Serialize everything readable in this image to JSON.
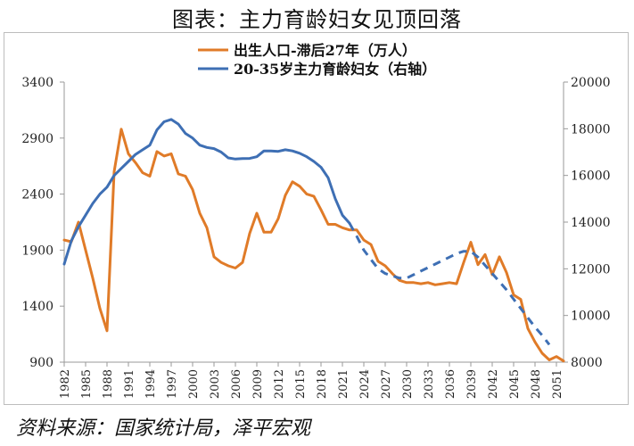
{
  "title": "图表：主力育龄妇女见顶回落",
  "source": "资料来源：国家统计局，泽平宏观",
  "chart_data": {
    "type": "line",
    "legend_position": "top-center",
    "grid": false,
    "x_ticks": [
      "1982",
      "1985",
      "1988",
      "1991",
      "1994",
      "1997",
      "2000",
      "2003",
      "2006",
      "2009",
      "2012",
      "2015",
      "2018",
      "2021",
      "2024",
      "2027",
      "2030",
      "2033",
      "2036",
      "2039",
      "2042",
      "2045",
      "2048",
      "2051"
    ],
    "x_range": [
      1982,
      2052
    ],
    "y_left": {
      "range": [
        900,
        3400
      ],
      "ticks": [
        900,
        1400,
        1900,
        2400,
        2900,
        3400
      ]
    },
    "y_right": {
      "range": [
        8000,
        20000
      ],
      "ticks": [
        8000,
        10000,
        12000,
        14000,
        16000,
        18000,
        20000
      ]
    },
    "series": [
      {
        "name": "出生人口-滞后27年（万人）",
        "axis": "left",
        "color": "#E07B28",
        "style": "solid",
        "points": [
          [
            1982,
            1990
          ],
          [
            1983,
            1975
          ],
          [
            1984,
            2150
          ],
          [
            1985,
            1900
          ],
          [
            1986,
            1650
          ],
          [
            1987,
            1380
          ],
          [
            1988,
            1180
          ],
          [
            1989,
            2600
          ],
          [
            1990,
            2980
          ],
          [
            1991,
            2760
          ],
          [
            1992,
            2680
          ],
          [
            1993,
            2590
          ],
          [
            1994,
            2560
          ],
          [
            1995,
            2780
          ],
          [
            1996,
            2740
          ],
          [
            1997,
            2760
          ],
          [
            1998,
            2580
          ],
          [
            1999,
            2560
          ],
          [
            2000,
            2440
          ],
          [
            2001,
            2230
          ],
          [
            2002,
            2100
          ],
          [
            2003,
            1840
          ],
          [
            2004,
            1790
          ],
          [
            2005,
            1760
          ],
          [
            2006,
            1740
          ],
          [
            2007,
            1790
          ],
          [
            2008,
            2050
          ],
          [
            2009,
            2230
          ],
          [
            2010,
            2060
          ],
          [
            2011,
            2060
          ],
          [
            2012,
            2180
          ],
          [
            2013,
            2390
          ],
          [
            2014,
            2510
          ],
          [
            2015,
            2470
          ],
          [
            2016,
            2400
          ],
          [
            2017,
            2380
          ],
          [
            2018,
            2260
          ],
          [
            2019,
            2130
          ],
          [
            2020,
            2130
          ],
          [
            2021,
            2100
          ],
          [
            2022,
            2080
          ],
          [
            2023,
            2080
          ],
          [
            2024,
            1990
          ],
          [
            2025,
            1950
          ],
          [
            2026,
            1800
          ],
          [
            2027,
            1760
          ],
          [
            2028,
            1690
          ],
          [
            2029,
            1630
          ],
          [
            2030,
            1610
          ],
          [
            2031,
            1610
          ],
          [
            2032,
            1600
          ],
          [
            2033,
            1610
          ],
          [
            2034,
            1590
          ],
          [
            2035,
            1600
          ],
          [
            2036,
            1610
          ],
          [
            2037,
            1600
          ],
          [
            2038,
            1790
          ],
          [
            2039,
            1970
          ],
          [
            2040,
            1770
          ],
          [
            2041,
            1860
          ],
          [
            2042,
            1680
          ],
          [
            2043,
            1840
          ],
          [
            2044,
            1700
          ],
          [
            2045,
            1500
          ],
          [
            2046,
            1460
          ],
          [
            2047,
            1200
          ],
          [
            2048,
            1080
          ],
          [
            2049,
            980
          ],
          [
            2050,
            920
          ],
          [
            2051,
            950
          ],
          [
            2052,
            910
          ]
        ]
      },
      {
        "name": "20-35岁主力育龄妇女（右轴）",
        "axis": "right",
        "color": "#3E6FB4",
        "points": [
          [
            1982,
            12200
          ],
          [
            1983,
            13200
          ],
          [
            1984,
            13800
          ],
          [
            1985,
            14300
          ],
          [
            1986,
            14800
          ],
          [
            1987,
            15200
          ],
          [
            1988,
            15500
          ],
          [
            1989,
            16000
          ],
          [
            1990,
            16300
          ],
          [
            1991,
            16600
          ],
          [
            1992,
            16900
          ],
          [
            1993,
            17100
          ],
          [
            1994,
            17300
          ],
          [
            1995,
            17950
          ],
          [
            1996,
            18300
          ],
          [
            1997,
            18400
          ],
          [
            1998,
            18200
          ],
          [
            1999,
            17800
          ],
          [
            2000,
            17600
          ],
          [
            2001,
            17300
          ],
          [
            2002,
            17200
          ],
          [
            2003,
            17150
          ],
          [
            2004,
            17000
          ],
          [
            2005,
            16750
          ],
          [
            2006,
            16700
          ],
          [
            2007,
            16720
          ],
          [
            2008,
            16730
          ],
          [
            2009,
            16800
          ],
          [
            2010,
            17050
          ],
          [
            2011,
            17050
          ],
          [
            2012,
            17030
          ],
          [
            2013,
            17100
          ],
          [
            2014,
            17050
          ],
          [
            2015,
            16950
          ],
          [
            2016,
            16800
          ],
          [
            2017,
            16600
          ],
          [
            2018,
            16350
          ],
          [
            2019,
            15900
          ],
          [
            2020,
            15000
          ],
          [
            2021,
            14300
          ],
          [
            2022,
            13950
          ],
          [
            2023,
            13400
          ],
          [
            2024,
            12800
          ],
          [
            2025,
            12400
          ],
          [
            2026,
            12000
          ],
          [
            2027,
            11800
          ],
          [
            2028,
            11700
          ],
          [
            2029,
            11600
          ],
          [
            2030,
            11600
          ],
          [
            2031,
            11750
          ],
          [
            2032,
            11900
          ],
          [
            2033,
            12050
          ],
          [
            2034,
            12200
          ],
          [
            2035,
            12350
          ],
          [
            2036,
            12500
          ],
          [
            2037,
            12650
          ],
          [
            2038,
            12750
          ],
          [
            2039,
            12750
          ],
          [
            2040,
            12500
          ],
          [
            2041,
            12150
          ],
          [
            2042,
            11800
          ],
          [
            2043,
            11450
          ],
          [
            2044,
            11100
          ],
          [
            2045,
            10700
          ],
          [
            2046,
            10300
          ],
          [
            2047,
            9900
          ],
          [
            2048,
            9500
          ],
          [
            2049,
            9150
          ],
          [
            2050,
            8750
          ]
        ],
        "dashed_from": 2022
      }
    ]
  }
}
